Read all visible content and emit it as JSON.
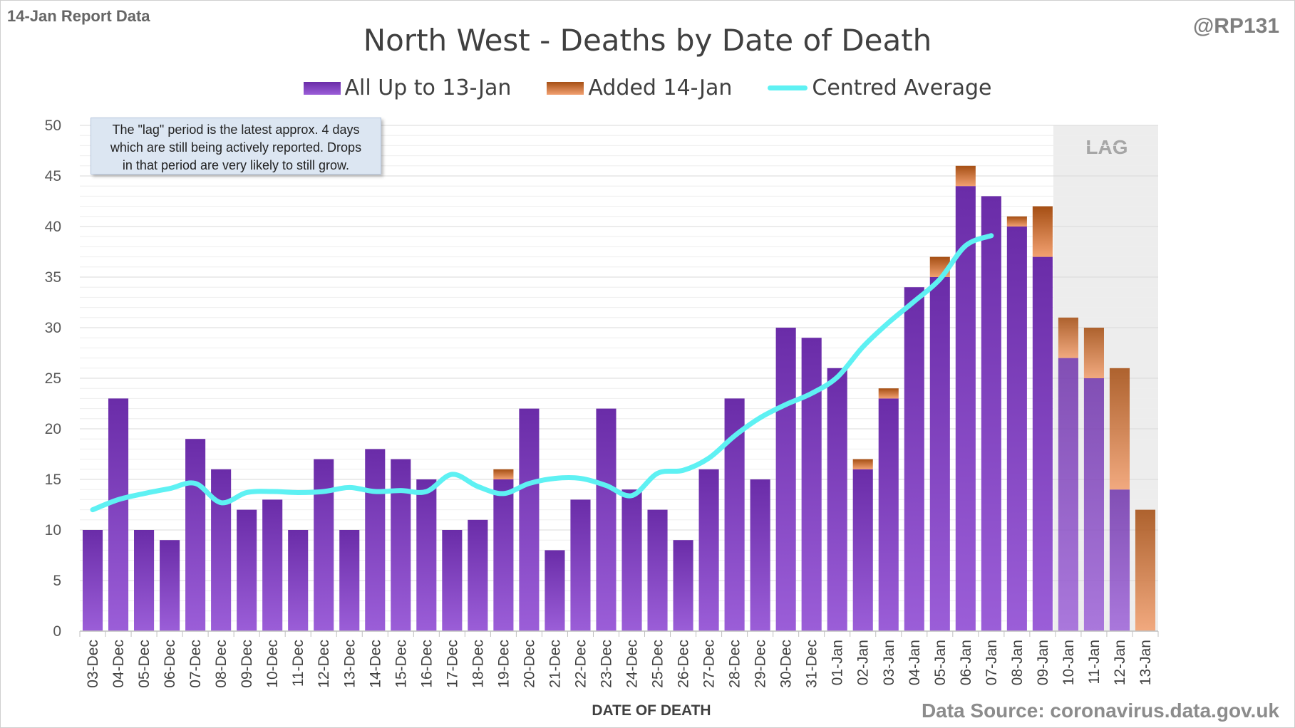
{
  "header": {
    "report_label": "14-Jan Report Data",
    "handle": "@RP131"
  },
  "footer": {
    "source": "Data Source: coronavirus.data.gov.uk"
  },
  "annotation": {
    "line1": "The \"lag\" period is the latest approx. 4 days",
    "line2": "which are still being actively reported.  Drops",
    "line3": "in that period are very likely to still grow."
  },
  "colors": {
    "base_bar_top": "#6a2ca8",
    "base_bar_bottom": "#9b5ed8",
    "added_bar_top": "#a54f14",
    "added_bar_bottom": "#f2a070",
    "average_line": "#5ef1f3",
    "lag_shade": "#ededed"
  },
  "chart_data": {
    "type": "bar",
    "stacked": true,
    "title": "North West - Deaths by Date of Death",
    "xlabel": "DATE OF DEATH",
    "ylabel": "",
    "ylim": [
      0,
      50
    ],
    "yticks": [
      0,
      5,
      10,
      15,
      20,
      25,
      30,
      35,
      40,
      45,
      50
    ],
    "grid": true,
    "legend_position": "top-center",
    "lag_label": "LAG",
    "lag_categories": [
      "10-Jan",
      "11-Jan",
      "12-Jan",
      "13-Jan"
    ],
    "categories": [
      "03-Dec",
      "04-Dec",
      "05-Dec",
      "06-Dec",
      "07-Dec",
      "08-Dec",
      "09-Dec",
      "10-Dec",
      "11-Dec",
      "12-Dec",
      "13-Dec",
      "14-Dec",
      "15-Dec",
      "16-Dec",
      "17-Dec",
      "18-Dec",
      "19-Dec",
      "20-Dec",
      "21-Dec",
      "22-Dec",
      "23-Dec",
      "24-Dec",
      "25-Dec",
      "26-Dec",
      "27-Dec",
      "28-Dec",
      "29-Dec",
      "30-Dec",
      "31-Dec",
      "01-Jan",
      "02-Jan",
      "03-Jan",
      "04-Jan",
      "05-Jan",
      "06-Jan",
      "07-Jan",
      "08-Jan",
      "09-Jan",
      "10-Jan",
      "11-Jan",
      "12-Jan",
      "13-Jan"
    ],
    "series": [
      {
        "name": "All Up to 13-Jan",
        "kind": "bar",
        "values": [
          10,
          23,
          10,
          9,
          19,
          16,
          12,
          13,
          10,
          17,
          10,
          18,
          17,
          15,
          10,
          11,
          15,
          22,
          8,
          13,
          22,
          14,
          12,
          9,
          16,
          23,
          15,
          30,
          29,
          26,
          16,
          23,
          34,
          35,
          44,
          43,
          40,
          37,
          27,
          25,
          14,
          0
        ]
      },
      {
        "name": "Added 14-Jan",
        "kind": "bar",
        "values": [
          0,
          0,
          0,
          0,
          0,
          0,
          0,
          0,
          0,
          0,
          0,
          0,
          0,
          0,
          0,
          0,
          1,
          0,
          0,
          0,
          0,
          0,
          0,
          0,
          0,
          0,
          0,
          0,
          0,
          0,
          1,
          1,
          0,
          2,
          2,
          0,
          1,
          5,
          4,
          5,
          12,
          12
        ]
      },
      {
        "name": "Centred Average",
        "kind": "line",
        "values": [
          12.0,
          13.0,
          13.6,
          14.1,
          14.6,
          12.7,
          13.7,
          13.8,
          13.7,
          13.8,
          14.2,
          13.8,
          13.9,
          13.8,
          15.5,
          14.3,
          13.6,
          14.6,
          15.1,
          15.1,
          14.4,
          13.4,
          15.6,
          15.9,
          17.1,
          19.3,
          21.1,
          22.4,
          23.5,
          25.1,
          28.1,
          30.5,
          32.6,
          34.8,
          38.1,
          39.1,
          null,
          null,
          null,
          null,
          null,
          null
        ]
      }
    ]
  }
}
